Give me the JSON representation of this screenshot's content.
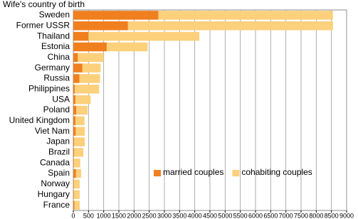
{
  "chart_data": {
    "type": "stacked-barh",
    "title": "Wife's country of birth",
    "categories": [
      "Sweden",
      "Former USSR",
      "Thailand",
      "Estonia",
      "China",
      "Germany",
      "Russia",
      "Philippines",
      "USA",
      "Poland",
      "United Kingdom",
      "Viet Nam",
      "Japan",
      "Brazil",
      "Canada",
      "Spain",
      "Norway",
      "Hungary",
      "France"
    ],
    "series": [
      {
        "name": "married couples",
        "color": "#f07f1e",
        "values": [
          2800,
          1800,
          500,
          1100,
          150,
          300,
          200,
          50,
          70,
          100,
          70,
          80,
          30,
          30,
          20,
          90,
          20,
          20,
          40
        ]
      },
      {
        "name": "cohabiting couples",
        "color": "#fdd07c",
        "values": [
          5750,
          6750,
          3650,
          1350,
          850,
          600,
          680,
          800,
          500,
          370,
          300,
          300,
          350,
          300,
          210,
          170,
          190,
          190,
          170
        ]
      }
    ],
    "xlim": [
      0,
      9000
    ],
    "xticks": [
      0,
      500,
      1000,
      1500,
      2000,
      2500,
      3000,
      3500,
      4000,
      4500,
      5000,
      5500,
      6000,
      6500,
      7000,
      7500,
      8000,
      8500,
      9000
    ],
    "grid": true,
    "legend": "lower-right"
  }
}
